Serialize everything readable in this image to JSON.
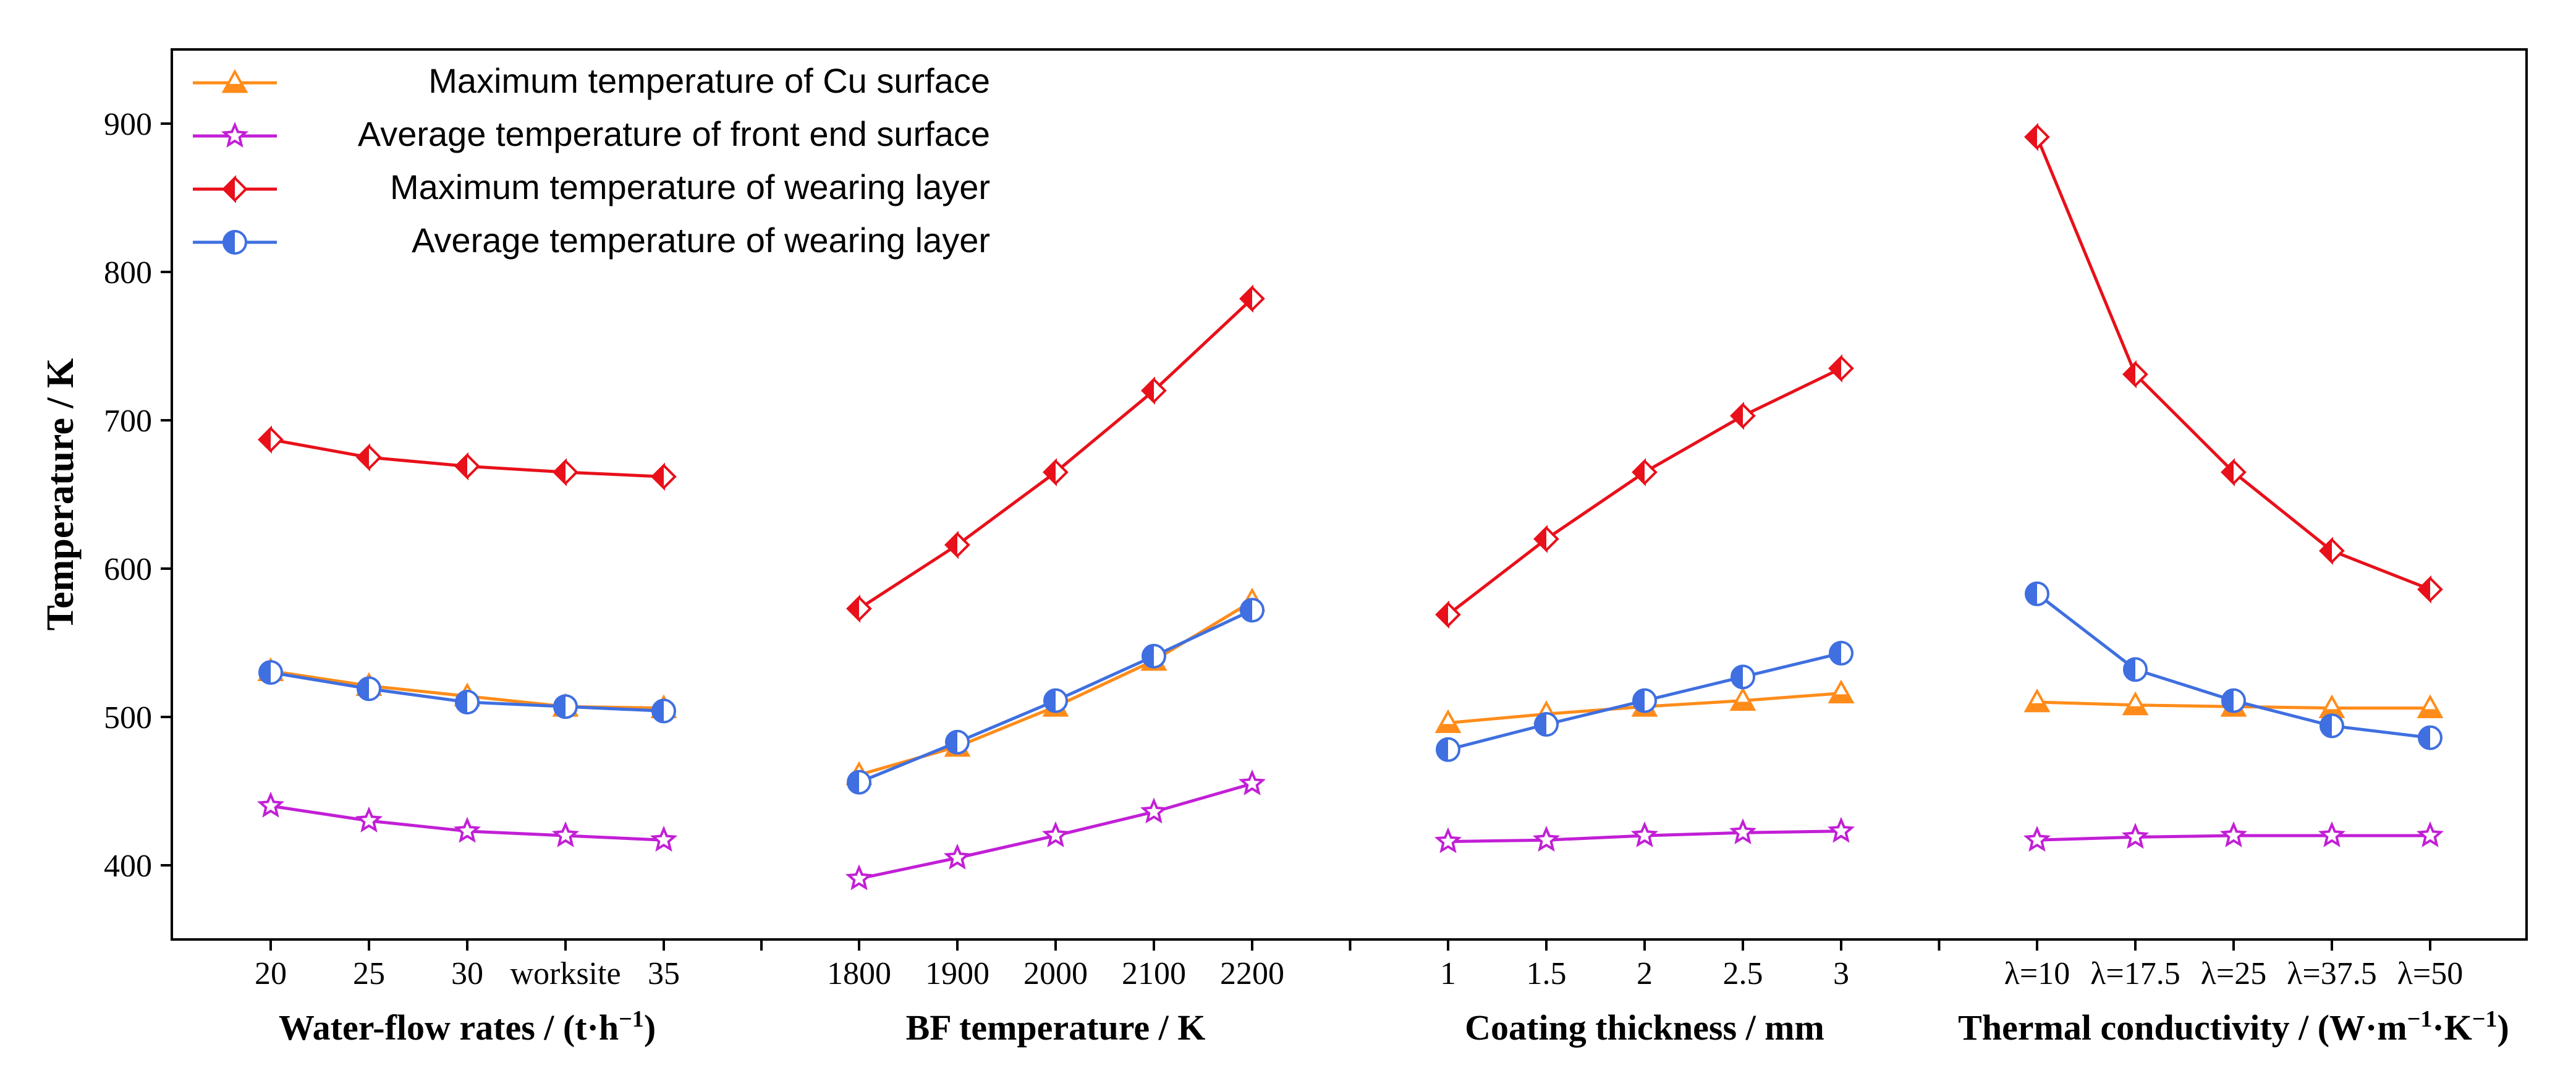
{
  "chart_data": {
    "type": "line",
    "ylabel": "Temperature / K",
    "ylim": [
      350,
      950
    ],
    "y_ticks": [
      400,
      500,
      600,
      700,
      800,
      900
    ],
    "grid": false,
    "legend_position": "top-left",
    "legend": [
      {
        "name": "Maximum temperature of Cu surface",
        "color": "#ff8c1a",
        "marker": "triangle"
      },
      {
        "name": "Average temperature of front end surface",
        "color": "#c21fd6",
        "marker": "star"
      },
      {
        "name": "Maximum temperature of wearing layer",
        "color": "#e8101a",
        "marker": "diamond"
      },
      {
        "name": "Average temperature of wearing layer",
        "color": "#3f6fe0",
        "marker": "circle"
      }
    ],
    "panels": [
      {
        "xlabel": "Water-flow rates / (t·h⁻¹)",
        "categories": [
          "20",
          "25",
          "30",
          "worksite",
          "35"
        ],
        "series": [
          {
            "name": "Maximum temperature of Cu surface",
            "values": [
              531,
              521,
              514,
              507,
              506
            ]
          },
          {
            "name": "Average temperature of front end surface",
            "values": [
              440,
              430,
              423,
              420,
              417
            ]
          },
          {
            "name": "Maximum temperature of wearing layer",
            "values": [
              687,
              675,
              669,
              665,
              662
            ]
          },
          {
            "name": "Average temperature of wearing layer",
            "values": [
              530,
              519,
              510,
              507,
              504
            ]
          }
        ]
      },
      {
        "xlabel": "BF temperature / K",
        "categories": [
          "1800",
          "1900",
          "2000",
          "2100",
          "2200"
        ],
        "series": [
          {
            "name": "Maximum temperature of Cu surface",
            "values": [
              461,
              480,
              507,
              538,
              578
            ]
          },
          {
            "name": "Average temperature of front end surface",
            "values": [
              391,
              405,
              420,
              436,
              455
            ]
          },
          {
            "name": "Maximum temperature of wearing layer",
            "values": [
              573,
              616,
              665,
              720,
              782
            ]
          },
          {
            "name": "Average temperature of wearing layer",
            "values": [
              456,
              483,
              511,
              541,
              572
            ]
          }
        ]
      },
      {
        "xlabel": "Coating thickness / mm",
        "categories": [
          "1",
          "1.5",
          "2",
          "2.5",
          "3"
        ],
        "series": [
          {
            "name": "Maximum temperature of Cu surface",
            "values": [
              496,
              502,
              507,
              511,
              516
            ]
          },
          {
            "name": "Average temperature of front end surface",
            "values": [
              416,
              417,
              420,
              422,
              423
            ]
          },
          {
            "name": "Maximum temperature of wearing layer",
            "values": [
              569,
              620,
              665,
              703,
              735
            ]
          },
          {
            "name": "Average temperature of wearing layer",
            "values": [
              478,
              495,
              511,
              527,
              543
            ]
          }
        ]
      },
      {
        "xlabel": "Thermal conductivity / (W·m⁻¹·K⁻¹)",
        "categories": [
          "λ=10",
          "λ=17.5",
          "λ=25",
          "λ=37.5",
          "λ=50"
        ],
        "series": [
          {
            "name": "Maximum temperature of Cu surface",
            "values": [
              510,
              508,
              507,
              506,
              506
            ]
          },
          {
            "name": "Average temperature of front end surface",
            "values": [
              417,
              419,
              420,
              420,
              420
            ]
          },
          {
            "name": "Maximum temperature of wearing layer",
            "values": [
              891,
              731,
              665,
              612,
              586
            ]
          },
          {
            "name": "Average temperature of wearing layer",
            "values": [
              583,
              532,
              511,
              494,
              486
            ]
          }
        ]
      }
    ]
  }
}
